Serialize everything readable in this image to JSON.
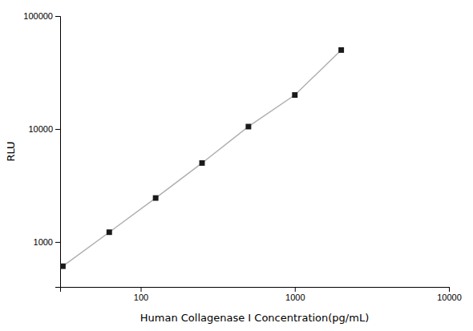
{
  "chart_data": {
    "type": "line",
    "x": [
      31.25,
      62.5,
      125,
      250,
      500,
      1000,
      2000
    ],
    "values": [
      610,
      1220,
      2450,
      5000,
      10500,
      20000,
      50000
    ],
    "xlabel": "Human Collagenase I Concentration(pg/mL)",
    "ylabel": "RLU",
    "xlim": [
      30,
      10000
    ],
    "ylim": [
      400,
      100000
    ],
    "xticks": [
      100,
      1000,
      10000
    ],
    "yticks": [
      1000,
      10000,
      100000
    ],
    "log": true,
    "color": "#1a1a1a",
    "marker": "square",
    "line_style": "solid",
    "grid": false
  }
}
